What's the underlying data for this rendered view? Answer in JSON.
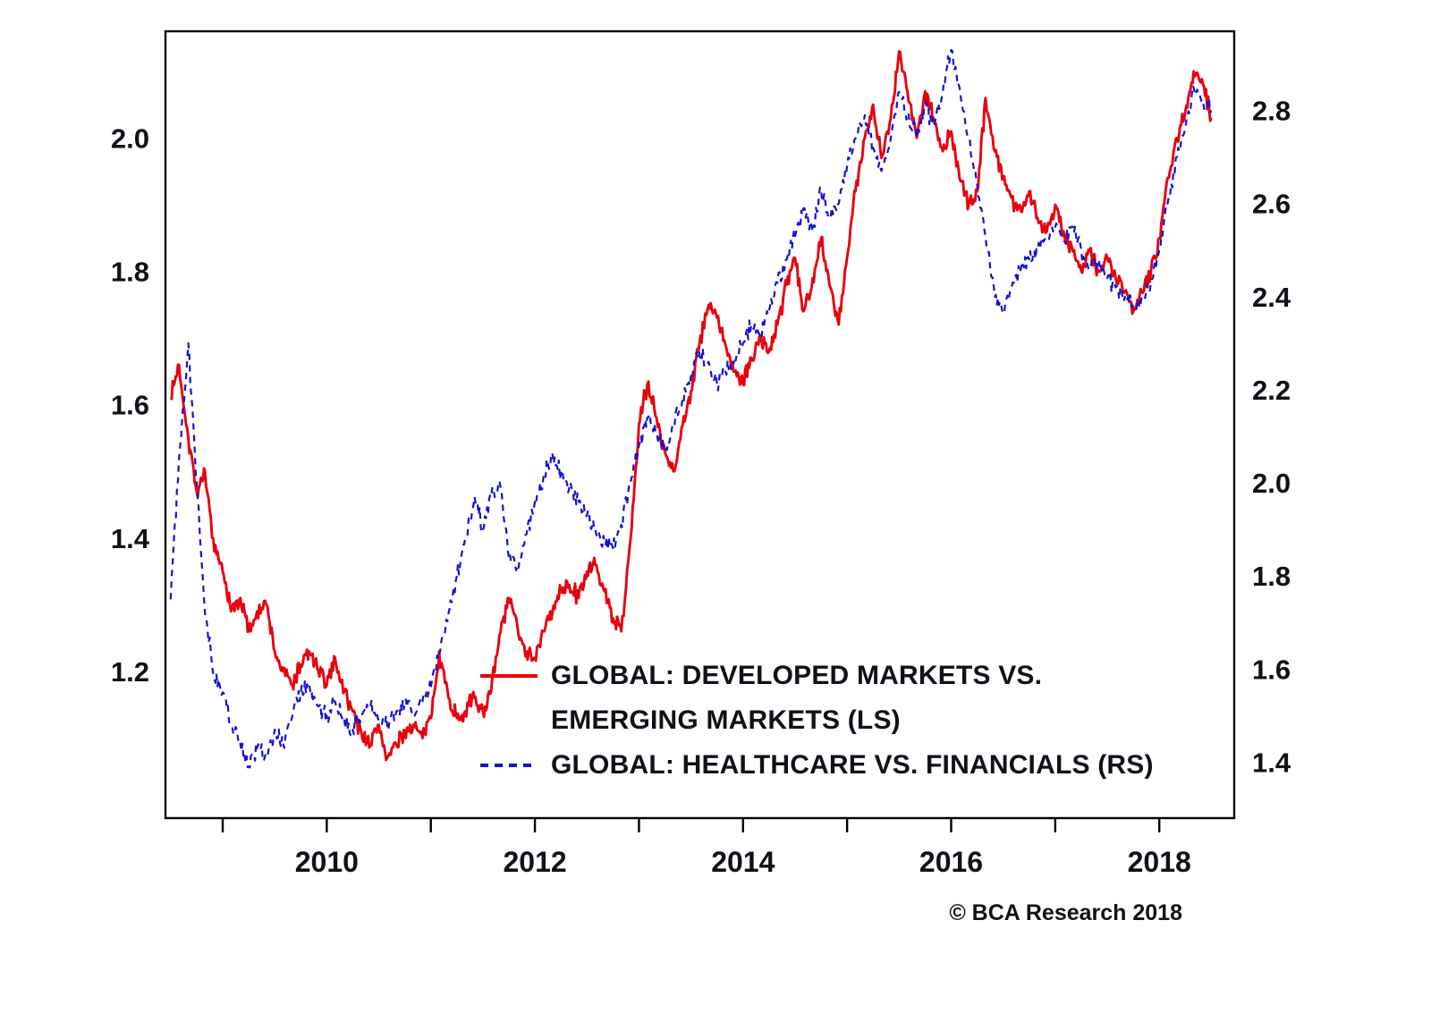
{
  "chart_data": {
    "type": "line",
    "title": "",
    "source": "© BCA Research 2018",
    "grid": false,
    "frame_color": "#000000",
    "text_color": "#101019",
    "x_axis": {
      "range": [
        2008.45,
        2018.72
      ],
      "minor_ticks": [
        2009,
        2010,
        2011,
        2012,
        2013,
        2014,
        2015,
        2016,
        2017,
        2018
      ],
      "labels": [
        {
          "value": 2010,
          "label": "2010"
        },
        {
          "value": 2012,
          "label": "2012"
        },
        {
          "value": 2014,
          "label": "2014"
        },
        {
          "value": 2016,
          "label": "2016"
        },
        {
          "value": 2018,
          "label": "2018"
        }
      ]
    },
    "left_axis": {
      "range": [
        0.98,
        2.16
      ],
      "ticks": [
        {
          "value": 2.0,
          "label": "2.0"
        },
        {
          "value": 1.8,
          "label": "1.8"
        },
        {
          "value": 1.6,
          "label": "1.6"
        },
        {
          "value": 1.4,
          "label": "1.4"
        },
        {
          "value": 1.2,
          "label": "1.2"
        }
      ]
    },
    "right_axis": {
      "range": [
        1.28,
        2.97
      ],
      "ticks": [
        {
          "value": 2.8,
          "label": "2.8"
        },
        {
          "value": 2.6,
          "label": "2.6"
        },
        {
          "value": 2.4,
          "label": "2.4"
        },
        {
          "value": 2.2,
          "label": "2.2"
        },
        {
          "value": 2.0,
          "label": "2.0"
        },
        {
          "value": 1.8,
          "label": "1.8"
        },
        {
          "value": 1.6,
          "label": "1.6"
        },
        {
          "value": 1.4,
          "label": "1.4"
        }
      ]
    },
    "x": [
      2008.5,
      2008.58,
      2008.67,
      2008.75,
      2008.83,
      2008.92,
      2009,
      2009.08,
      2009.17,
      2009.25,
      2009.33,
      2009.42,
      2009.5,
      2009.58,
      2009.67,
      2009.75,
      2009.83,
      2009.92,
      2010,
      2010.08,
      2010.17,
      2010.25,
      2010.33,
      2010.42,
      2010.5,
      2010.58,
      2010.67,
      2010.75,
      2010.83,
      2010.92,
      2011,
      2011.08,
      2011.17,
      2011.25,
      2011.33,
      2011.42,
      2011.5,
      2011.58,
      2011.67,
      2011.75,
      2011.83,
      2011.92,
      2012,
      2012.08,
      2012.17,
      2012.25,
      2012.33,
      2012.42,
      2012.5,
      2012.58,
      2012.67,
      2012.75,
      2012.83,
      2012.92,
      2013,
      2013.08,
      2013.17,
      2013.25,
      2013.33,
      2013.42,
      2013.5,
      2013.58,
      2013.67,
      2013.75,
      2013.83,
      2013.92,
      2014,
      2014.08,
      2014.17,
      2014.25,
      2014.33,
      2014.42,
      2014.5,
      2014.58,
      2014.67,
      2014.75,
      2014.83,
      2014.92,
      2015,
      2015.08,
      2015.17,
      2015.25,
      2015.33,
      2015.42,
      2015.5,
      2015.58,
      2015.67,
      2015.75,
      2015.83,
      2015.92,
      2016,
      2016.08,
      2016.17,
      2016.25,
      2016.33,
      2016.42,
      2016.5,
      2016.58,
      2016.67,
      2016.75,
      2016.83,
      2016.92,
      2017,
      2017.08,
      2017.17,
      2017.25,
      2017.33,
      2017.42,
      2017.5,
      2017.58,
      2017.67,
      2017.75,
      2017.83,
      2017.92,
      2018,
      2018.08,
      2018.17,
      2018.25,
      2018.33,
      2018.42,
      2018.5
    ],
    "series": [
      {
        "id": "developed-vs-emerging",
        "name": "GLOBAL: DEVELOPED MARKETS VS. EMERGING MARKETS (LS)",
        "axis": "left",
        "color": "#e8000d",
        "line_style": "solid",
        "values": [
          1.61,
          1.66,
          1.55,
          1.47,
          1.5,
          1.38,
          1.35,
          1.29,
          1.31,
          1.26,
          1.29,
          1.3,
          1.23,
          1.2,
          1.18,
          1.21,
          1.23,
          1.2,
          1.18,
          1.22,
          1.17,
          1.14,
          1.11,
          1.09,
          1.12,
          1.07,
          1.09,
          1.11,
          1.12,
          1.1,
          1.13,
          1.23,
          1.16,
          1.13,
          1.14,
          1.16,
          1.14,
          1.17,
          1.26,
          1.31,
          1.27,
          1.23,
          1.22,
          1.26,
          1.29,
          1.32,
          1.33,
          1.31,
          1.35,
          1.36,
          1.32,
          1.28,
          1.26,
          1.4,
          1.57,
          1.63,
          1.58,
          1.53,
          1.5,
          1.57,
          1.62,
          1.69,
          1.75,
          1.73,
          1.69,
          1.65,
          1.63,
          1.67,
          1.7,
          1.68,
          1.72,
          1.78,
          1.82,
          1.74,
          1.79,
          1.85,
          1.78,
          1.72,
          1.82,
          1.92,
          2.0,
          2.05,
          1.97,
          2.03,
          2.13,
          2.07,
          2.0,
          2.07,
          2.03,
          1.98,
          2.01,
          1.94,
          1.9,
          1.92,
          2.06,
          1.98,
          1.94,
          1.91,
          1.89,
          1.92,
          1.88,
          1.86,
          1.9,
          1.86,
          1.83,
          1.8,
          1.83,
          1.8,
          1.82,
          1.79,
          1.77,
          1.74,
          1.77,
          1.8,
          1.85,
          1.94,
          2.0,
          2.04,
          2.1,
          2.08,
          2.03
        ]
      },
      {
        "id": "healthcare-vs-financials",
        "name": "GLOBAL: HEALTHCARE VS. FINANCIALS (RS)",
        "axis": "right",
        "color": "#1313cf",
        "line_style": "dashed",
        "values": [
          1.75,
          2.05,
          2.3,
          2.0,
          1.72,
          1.58,
          1.55,
          1.48,
          1.44,
          1.39,
          1.43,
          1.41,
          1.47,
          1.44,
          1.5,
          1.55,
          1.57,
          1.52,
          1.5,
          1.53,
          1.49,
          1.47,
          1.5,
          1.52,
          1.49,
          1.48,
          1.51,
          1.53,
          1.5,
          1.53,
          1.56,
          1.63,
          1.72,
          1.8,
          1.88,
          1.97,
          1.9,
          1.97,
          1.99,
          1.84,
          1.82,
          1.89,
          1.96,
          2.01,
          2.06,
          2.02,
          1.99,
          1.96,
          1.93,
          1.9,
          1.87,
          1.86,
          1.91,
          2.0,
          2.08,
          2.14,
          2.11,
          2.07,
          2.12,
          2.18,
          2.23,
          2.28,
          2.26,
          2.21,
          2.24,
          2.27,
          2.3,
          2.34,
          2.31,
          2.37,
          2.43,
          2.48,
          2.53,
          2.59,
          2.54,
          2.63,
          2.57,
          2.6,
          2.68,
          2.74,
          2.79,
          2.72,
          2.67,
          2.74,
          2.84,
          2.79,
          2.74,
          2.81,
          2.77,
          2.84,
          2.93,
          2.85,
          2.74,
          2.64,
          2.53,
          2.4,
          2.37,
          2.42,
          2.46,
          2.48,
          2.5,
          2.52,
          2.55,
          2.52,
          2.55,
          2.5,
          2.46,
          2.48,
          2.44,
          2.42,
          2.4,
          2.38,
          2.4,
          2.43,
          2.5,
          2.6,
          2.7,
          2.76,
          2.85,
          2.82,
          2.8
        ]
      }
    ]
  },
  "legend": {
    "items": [
      {
        "series": "developed-vs-emerging",
        "color": "#e8000d",
        "style": "solid",
        "lines": [
          "GLOBAL: DEVELOPED MARKETS VS.",
          "EMERGING MARKETS (LS)"
        ]
      },
      {
        "series": "healthcare-vs-financials",
        "color": "#1313cf",
        "style": "dashed",
        "lines": [
          "GLOBAL: HEALTHCARE VS. FINANCIALS (RS)"
        ]
      }
    ]
  },
  "footer": {
    "copyright": "© BCA Research 2018"
  }
}
